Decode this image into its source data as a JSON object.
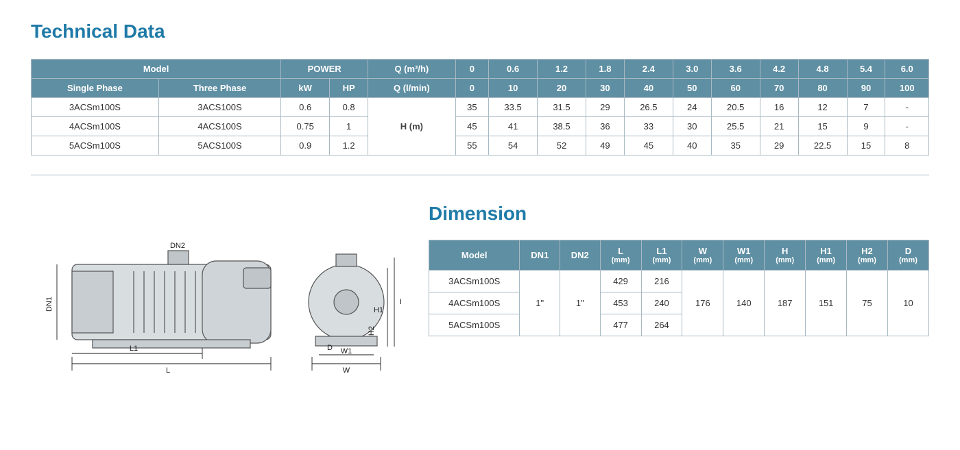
{
  "tech": {
    "title": "Technical Data",
    "header1": {
      "model": "Model",
      "power": "POWER",
      "q_m3h": "Q (m³/h)",
      "q_lmin": "Q (l/min)",
      "flow_m3h": [
        "0",
        "0.6",
        "1.2",
        "1.8",
        "2.4",
        "3.0",
        "3.6",
        "4.2",
        "4.8",
        "5.4",
        "6.0"
      ],
      "flow_lmin": [
        "0",
        "10",
        "20",
        "30",
        "40",
        "50",
        "60",
        "70",
        "80",
        "90",
        "100"
      ]
    },
    "header2": {
      "sp": "Single Phase",
      "tp": "Three Phase",
      "kw": "kW",
      "hp": "HP"
    },
    "h_label": "H (m)",
    "rows": [
      {
        "sp": "3ACSm100S",
        "tp": "3ACS100S",
        "kw": "0.6",
        "hp": "0.8",
        "h": [
          "35",
          "33.5",
          "31.5",
          "29",
          "26.5",
          "24",
          "20.5",
          "16",
          "12",
          "7",
          "-"
        ]
      },
      {
        "sp": "4ACSm100S",
        "tp": "4ACS100S",
        "kw": "0.75",
        "hp": "1",
        "h": [
          "45",
          "41",
          "38.5",
          "36",
          "33",
          "30",
          "25.5",
          "21",
          "15",
          "9",
          "-"
        ]
      },
      {
        "sp": "5ACSm100S",
        "tp": "5ACS100S",
        "kw": "0.9",
        "hp": "1.2",
        "h": [
          "55",
          "54",
          "52",
          "49",
          "45",
          "40",
          "35",
          "29",
          "22.5",
          "15",
          "8"
        ]
      }
    ],
    "style": {
      "header_bg": "#5f8fa3",
      "header_fg": "#ffffff",
      "border_color": "#a8b9c3",
      "title_color": "#1f7aa8",
      "title_fontsize": 28,
      "cell_fontsize": 13
    }
  },
  "dim": {
    "title": "Dimension",
    "cols": [
      {
        "k": "model",
        "l1": "Model",
        "l2": ""
      },
      {
        "k": "dn1",
        "l1": "DN1",
        "l2": ""
      },
      {
        "k": "dn2",
        "l1": "DN2",
        "l2": ""
      },
      {
        "k": "L",
        "l1": "L",
        "l2": "(mm)"
      },
      {
        "k": "L1",
        "l1": "L1",
        "l2": "(mm)"
      },
      {
        "k": "W",
        "l1": "W",
        "l2": "(mm)"
      },
      {
        "k": "W1",
        "l1": "W1",
        "l2": "(mm)"
      },
      {
        "k": "H",
        "l1": "H",
        "l2": "(mm)"
      },
      {
        "k": "H1",
        "l1": "H1",
        "l2": "(mm)"
      },
      {
        "k": "H2",
        "l1": "H2",
        "l2": "(mm)"
      },
      {
        "k": "D",
        "l1": "D",
        "l2": "(mm)"
      }
    ],
    "rows": [
      {
        "model": "3ACSm100S",
        "L": "429",
        "L1": "216"
      },
      {
        "model": "4ACSm100S",
        "L": "453",
        "L1": "240"
      },
      {
        "model": "5ACSm100S",
        "L": "477",
        "L1": "264"
      }
    ],
    "merged": {
      "dn1": "1\"",
      "dn2": "1\"",
      "W": "176",
      "W1": "140",
      "H": "187",
      "H1": "151",
      "H2": "75",
      "D": "10"
    },
    "style": {
      "header_bg": "#5f8fa3",
      "header_fg": "#ffffff",
      "border_color": "#a8b9c3",
      "title_color": "#1f7aa8"
    }
  },
  "drawing_labels": {
    "dn1": "DN1",
    "dn2": "DN2",
    "L": "L",
    "L1": "L1",
    "W": "W",
    "W1": "W1",
    "H": "H",
    "H1": "H1",
    "H2": "H2",
    "D": "D"
  }
}
